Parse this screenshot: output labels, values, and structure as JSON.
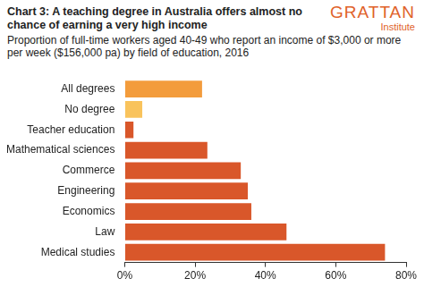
{
  "chart_data": {
    "type": "bar",
    "orientation": "horizontal",
    "title": "Chart 3: A teaching degree in Australia offers almost no chance of earning a very high income",
    "subtitle": "Proportion of full-time workers aged 40-49 who report an income of $3,000 or more per week ($156,000 pa) by field of education, 2016",
    "annotations": [
      "GRATTAN",
      "Institute"
    ],
    "categories": [
      "All degrees",
      "No degree",
      "Teacher education",
      "Mathematical sciences",
      "Commerce",
      "Engineering",
      "Economics",
      "Law",
      "Medical studies"
    ],
    "values": [
      22,
      5,
      2.5,
      23.5,
      33,
      35,
      36,
      46,
      74
    ],
    "colors": [
      "#f39c3c",
      "#f9c35c",
      "#d9572a",
      "#d9572a",
      "#d9572a",
      "#d9572a",
      "#d9572a",
      "#d9572a",
      "#d9572a"
    ],
    "xlim": [
      0,
      80
    ],
    "xticks": [
      {
        "value": 0,
        "label": "0%"
      },
      {
        "value": 20,
        "label": "20%"
      },
      {
        "value": 40,
        "label": "40%"
      },
      {
        "value": 60,
        "label": "60%"
      },
      {
        "value": 80,
        "label": "80%"
      }
    ],
    "grid": false
  }
}
